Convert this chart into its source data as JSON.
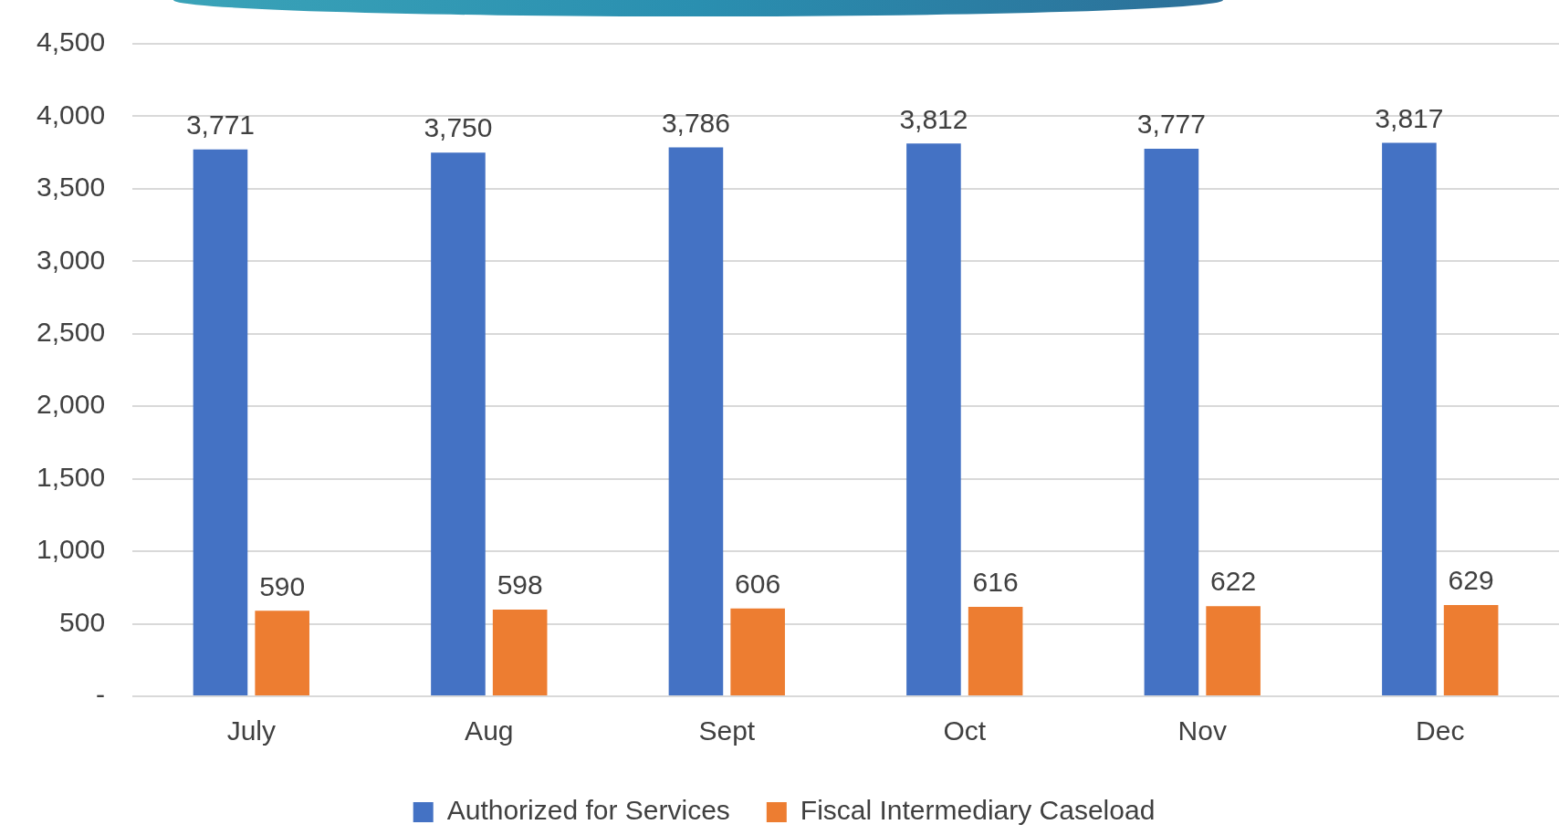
{
  "chart_data": {
    "type": "bar",
    "categories": [
      "July",
      "Aug",
      "Sept",
      "Oct",
      "Nov",
      "Dec"
    ],
    "series": [
      {
        "name": "Authorized for Services",
        "color": "#4472c4",
        "values": [
          3771,
          3750,
          3786,
          3812,
          3777,
          3817
        ],
        "value_labels": [
          "3,771",
          "3,750",
          "3,786",
          "3,812",
          "3,777",
          "3,817"
        ]
      },
      {
        "name": "Fiscal Intermediary Caseload",
        "color": "#ed7d31",
        "values": [
          590,
          598,
          606,
          616,
          622,
          629
        ],
        "value_labels": [
          "590",
          "598",
          "606",
          "616",
          "622",
          "629"
        ]
      }
    ],
    "ylim": [
      0,
      4500
    ],
    "yticks": [
      {
        "value": 0,
        "label": "-"
      },
      {
        "value": 500,
        "label": "500"
      },
      {
        "value": 1000,
        "label": "1,000"
      },
      {
        "value": 1500,
        "label": "1,500"
      },
      {
        "value": 2000,
        "label": "2,000"
      },
      {
        "value": 2500,
        "label": "2,500"
      },
      {
        "value": 3000,
        "label": "3,000"
      },
      {
        "value": 3500,
        "label": "3,500"
      },
      {
        "value": 4000,
        "label": "4,000"
      },
      {
        "value": 4500,
        "label": "4,500"
      }
    ],
    "grid": "y",
    "legend": "bottom"
  }
}
